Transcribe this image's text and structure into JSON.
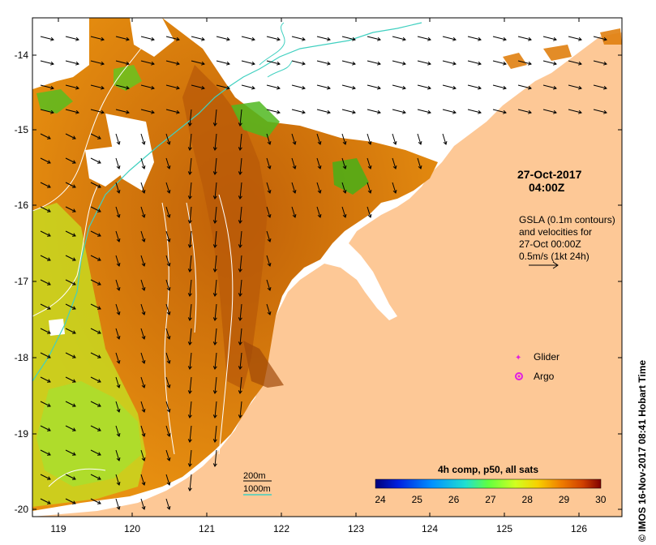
{
  "map": {
    "lon_ticks": [
      "119",
      "120",
      "121",
      "122",
      "123",
      "124",
      "125",
      "126"
    ],
    "lat_ticks": [
      "-14",
      "-15",
      "-16",
      "-17",
      "-18",
      "-19",
      "-20"
    ],
    "date_line1": "27-Oct-2017",
    "date_line2": "04:00Z",
    "gsla_lines": [
      "GSLA (0.1m contours)",
      "and velocities for",
      "27-Oct 00:00Z",
      "0.5m/s (1kt 24h)"
    ],
    "legend": {
      "glider": "Glider",
      "argo": "Argo"
    },
    "depth_legend": {
      "d200": "200m",
      "d1000": "1000m"
    },
    "colorbar": {
      "title": "4h comp, p50, all sats",
      "ticks": [
        "24",
        "25",
        "26",
        "27",
        "28",
        "29",
        "30"
      ]
    },
    "credit": "© IMOS 16-Nov-2017 08:41 Hobart Time"
  },
  "colors": {
    "land": "#fdc896",
    "bathy_1000m": "#40d0c0",
    "gsla_contour": "#ffffff",
    "glider": "#e020e0",
    "argo": "#e020e0"
  }
}
